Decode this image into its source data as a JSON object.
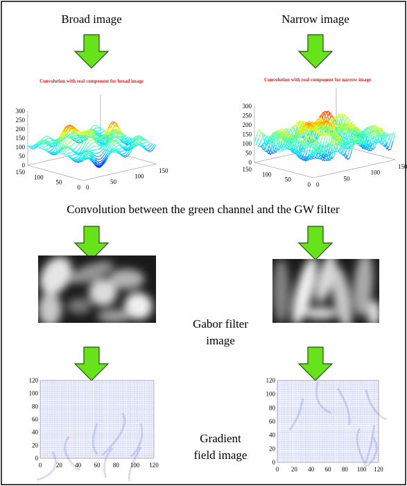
{
  "left": {
    "title": "Broad image",
    "plot_title": "Convolution with real component for broad image",
    "z_ticks": [
      0,
      50,
      100,
      150,
      200,
      250,
      300
    ],
    "y_ticks": [
      0,
      50,
      100,
      150
    ],
    "x_ticks": [
      0,
      50,
      100,
      150
    ],
    "gradient_y_ticks": [
      0,
      20,
      40,
      60,
      80,
      100,
      120
    ],
    "gradient_x_ticks": [
      0,
      20,
      40,
      60,
      80,
      100,
      120
    ]
  },
  "right": {
    "title": "Narrow image",
    "plot_title": "Convolution with real component for narrow image",
    "z_ticks": [
      0,
      50,
      100,
      150,
      200,
      250,
      300
    ],
    "y_ticks": [
      0,
      50,
      100,
      150
    ],
    "x_ticks": [
      0,
      50,
      100,
      150
    ],
    "gradient_y_ticks": [
      0,
      20,
      40,
      60,
      80,
      100,
      120
    ],
    "gradient_x_ticks": [
      0,
      20,
      40,
      60,
      80,
      100,
      120
    ]
  },
  "middle_caption": "Convolution between the green channel and the GW filter",
  "gabor_label": [
    "Gabor filter",
    "image"
  ],
  "gradient_label": [
    "Gradient",
    "field image"
  ]
}
